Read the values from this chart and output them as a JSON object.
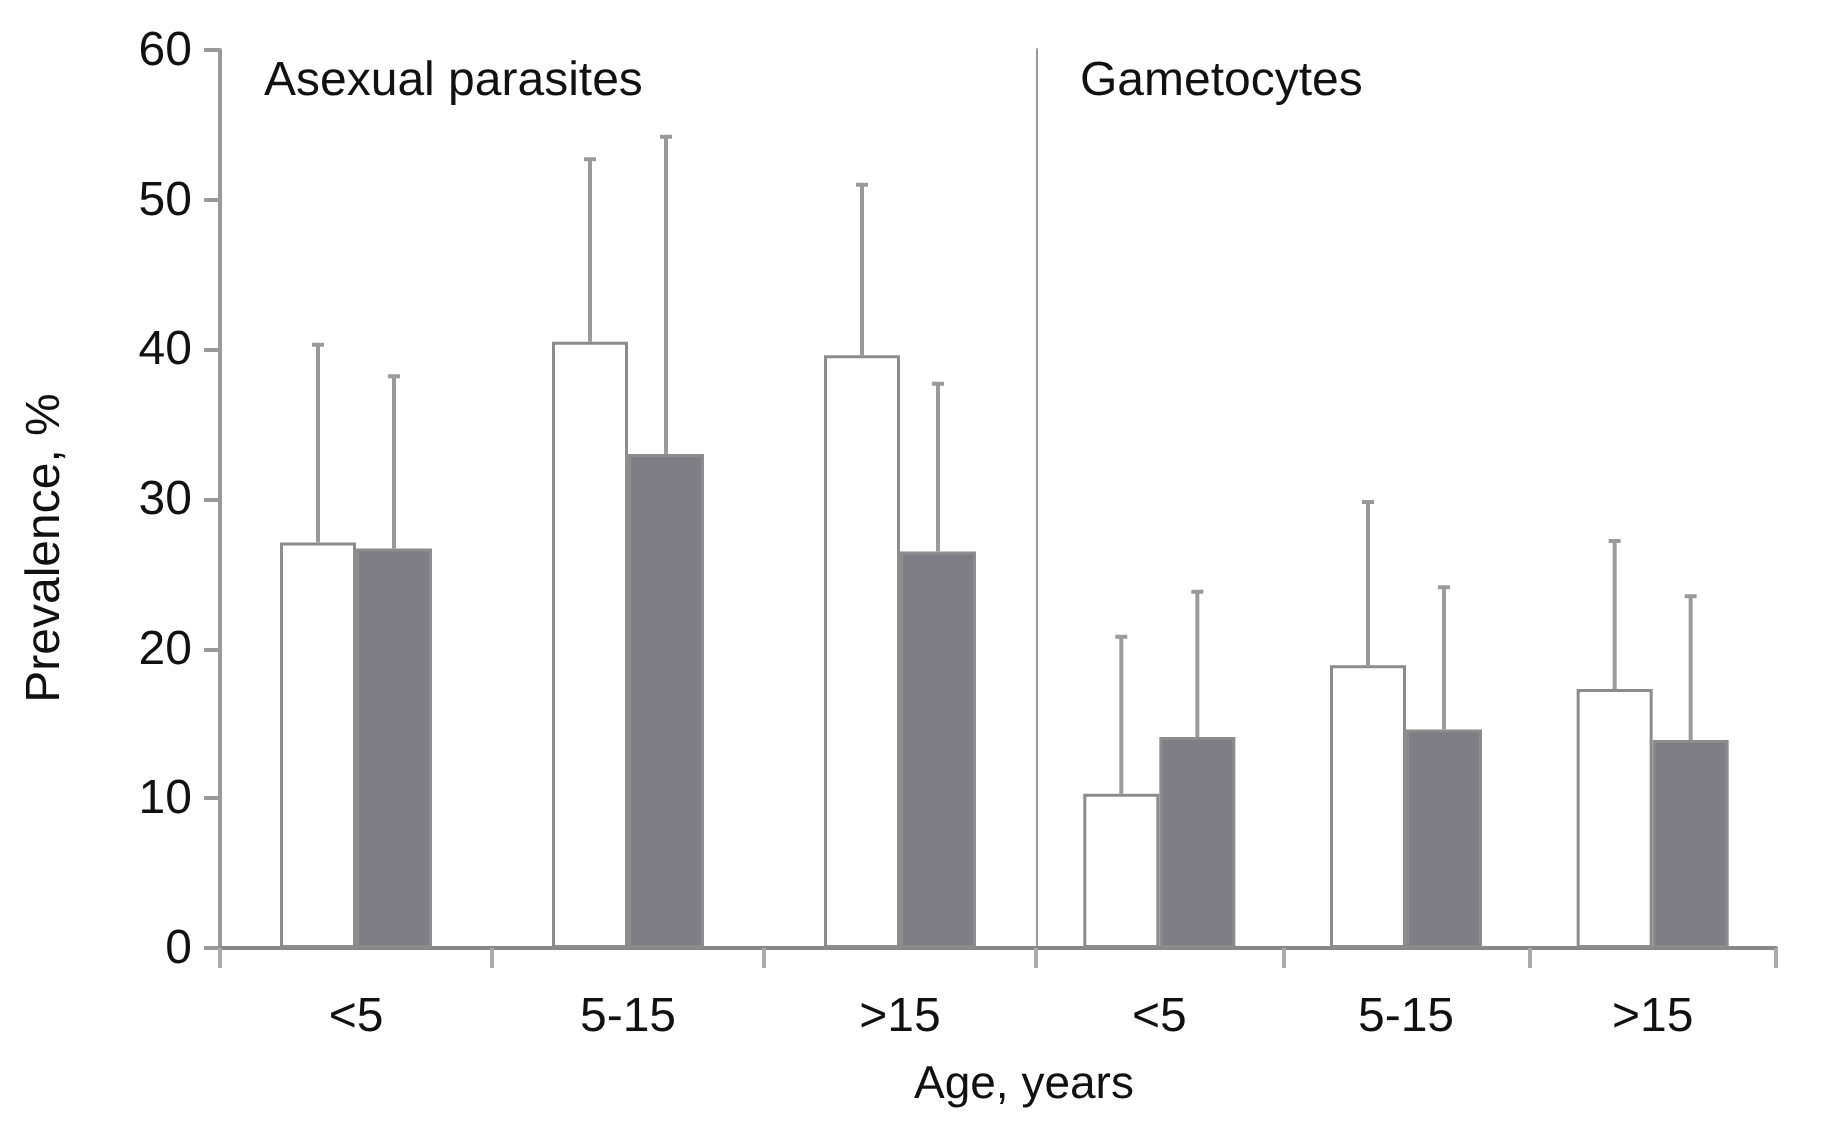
{
  "chart_data": [
    {
      "type": "bar",
      "ylabel": "Prevalence, %",
      "xlabel": "Age, years",
      "annotations": [
        "Asexual parasites"
      ],
      "categories": [
        "<5",
        "5-15",
        ">15"
      ],
      "ylim": [
        0,
        60
      ],
      "yticks": [
        0,
        10,
        20,
        30,
        40,
        50,
        60
      ],
      "grid": false,
      "series": [
        {
          "color": "#ffffff",
          "values": [
            27.1,
            40.5,
            39.6
          ],
          "errors": [
            [
              27.1,
              40.3
            ],
            [
              40.5,
              52.7
            ],
            [
              39.6,
              51.0
            ]
          ]
        },
        {
          "color": "#7f7e85",
          "values": [
            26.7,
            33.0,
            26.5
          ],
          "errors": [
            [
              26.7,
              38.2
            ],
            [
              33.0,
              54.2
            ],
            [
              26.5,
              37.7
            ]
          ]
        }
      ]
    },
    {
      "type": "bar",
      "annotations": [
        "Gametocytes"
      ],
      "categories": [
        "<5",
        "5-15",
        ">15"
      ],
      "ylim": [
        0,
        60
      ],
      "yticks": [
        0,
        10,
        20,
        30,
        40,
        50,
        60
      ],
      "grid": false,
      "tick_labels": "x",
      "series": [
        {
          "color": "#ffffff",
          "values": [
            10.3,
            18.9,
            17.3
          ],
          "errors": [
            [
              10.3,
              20.8
            ],
            [
              18.9,
              29.8
            ],
            [
              17.3,
              27.2
            ]
          ]
        },
        {
          "color": "#7f7e85",
          "values": [
            14.1,
            14.6,
            13.9
          ],
          "errors": [
            [
              14.1,
              23.8
            ],
            [
              14.6,
              24.1
            ],
            [
              13.9,
              23.5
            ]
          ]
        }
      ]
    }
  ]
}
